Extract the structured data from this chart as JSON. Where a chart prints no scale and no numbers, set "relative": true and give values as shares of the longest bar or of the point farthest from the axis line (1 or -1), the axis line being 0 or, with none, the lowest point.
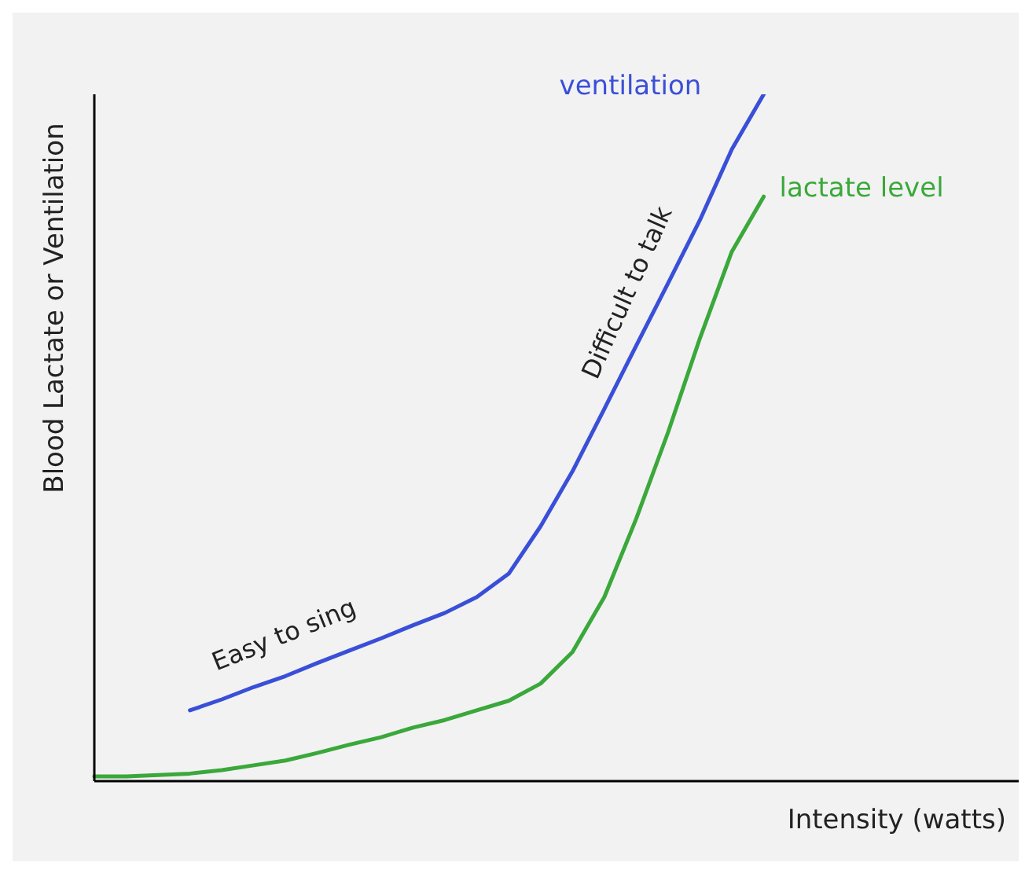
{
  "chart_data": {
    "type": "line",
    "relative": true,
    "xlabel": "Intensity (watts)",
    "ylabel": "Blood Lactate or Ventilation",
    "categories": [
      null,
      null,
      null,
      null,
      null,
      null,
      null,
      null,
      null,
      null,
      null,
      null,
      null,
      null,
      null,
      null,
      null,
      null,
      null,
      null,
      null,
      null,
      null,
      null,
      null,
      null,
      null,
      null,
      null,
      null
    ],
    "series": [
      {
        "name": "ventilation",
        "color": "#3a4fd8",
        "values": [
          null,
          null,
          null,
          0.103,
          0.119,
          0.137,
          0.153,
          0.172,
          0.19,
          0.208,
          0.227,
          0.245,
          0.268,
          0.302,
          0.371,
          0.451,
          0.542,
          0.634,
          0.725,
          0.817,
          0.92,
          1.0,
          null,
          null,
          null,
          null,
          null,
          null,
          null,
          null
        ]
      },
      {
        "name": "lactate level",
        "color": "#3aa83a",
        "values": [
          0.007,
          0.007,
          0.009,
          0.011,
          0.016,
          0.023,
          0.03,
          0.041,
          0.053,
          0.064,
          0.078,
          0.089,
          0.103,
          0.117,
          0.142,
          0.188,
          0.268,
          0.382,
          0.508,
          0.645,
          0.771,
          0.851,
          null,
          null,
          null,
          null,
          null,
          null,
          null,
          null
        ]
      }
    ],
    "annotations": [
      "Easy to sing",
      "Difficult to talk"
    ],
    "grid": false,
    "legend": false,
    "marker": "none",
    "line_style": "solid"
  }
}
